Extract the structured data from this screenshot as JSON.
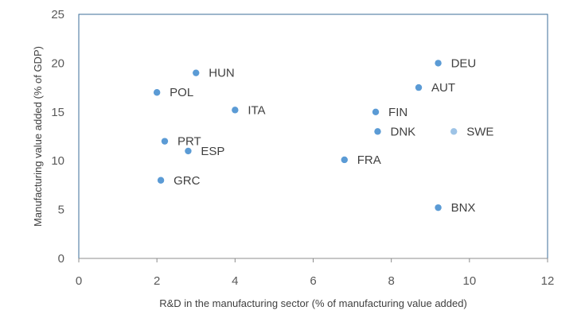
{
  "chart_data": {
    "type": "scatter",
    "title": "",
    "xlabel": "R&D in the manufacturing sector (% of manufacturing value added)",
    "ylabel": "Manufacturing value added (% of GDP)",
    "xlim": [
      0,
      12
    ],
    "ylim": [
      0,
      25
    ],
    "x_ticks": [
      0,
      2,
      4,
      6,
      8,
      10,
      12
    ],
    "y_ticks": [
      0,
      5,
      10,
      15,
      20,
      25
    ],
    "grid": false,
    "marker_color": "#5B9BD5",
    "highlight_color": "#9DC3E6",
    "points": [
      {
        "label": "HUN",
        "x": 3.0,
        "y": 19.0
      },
      {
        "label": "POL",
        "x": 2.0,
        "y": 17.0
      },
      {
        "label": "ITA",
        "x": 4.0,
        "y": 15.2
      },
      {
        "label": "PRT",
        "x": 2.2,
        "y": 12.0
      },
      {
        "label": "ESP",
        "x": 2.8,
        "y": 11.0
      },
      {
        "label": "GRC",
        "x": 2.1,
        "y": 8.0
      },
      {
        "label": "DEU",
        "x": 9.2,
        "y": 20.0
      },
      {
        "label": "AUT",
        "x": 8.7,
        "y": 17.5
      },
      {
        "label": "FIN",
        "x": 7.6,
        "y": 15.0
      },
      {
        "label": "DNK",
        "x": 7.65,
        "y": 13.0
      },
      {
        "label": "SWE",
        "x": 9.6,
        "y": 13.0,
        "highlight": true
      },
      {
        "label": "FRA",
        "x": 6.8,
        "y": 10.1
      },
      {
        "label": "BNX",
        "x": 9.2,
        "y": 5.2
      }
    ]
  }
}
